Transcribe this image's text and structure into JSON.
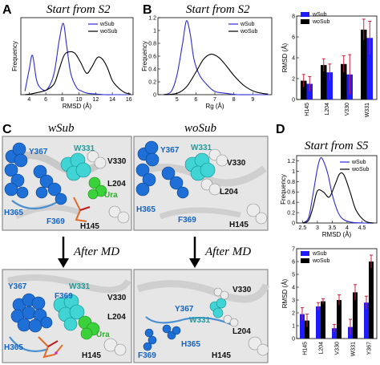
{
  "colors": {
    "wSub": "#2b2bd4",
    "woSub": "#000000",
    "err": "#d01c3c",
    "bar_wSub": "#1c1cff",
    "bar_woSub": "#000000"
  },
  "panels": {
    "A": {
      "letter": "A",
      "title": "Start from S2"
    },
    "B": {
      "letter": "B",
      "title": "Start from S2"
    },
    "C": {
      "letter": "C",
      "title_left": "wSub",
      "title_right": "woSub",
      "after_left": "After MD",
      "after_right": "After MD"
    },
    "D": {
      "letter": "D",
      "title": "Start from S5"
    }
  },
  "structure_labels": {
    "tl": [
      "Y367",
      "W331",
      "V330",
      "L204",
      "Ura",
      "H365",
      "F369",
      "H145"
    ],
    "tr": [
      "Y367",
      "W331",
      "V330",
      "L204",
      "H365",
      "F369",
      "H145"
    ],
    "bl": [
      "Y367",
      "W331",
      "F369",
      "V330",
      "L204",
      "Ura",
      "H365",
      "H145"
    ],
    "br": [
      "V330",
      "Y367",
      "W331",
      "L204",
      "F369",
      "H365",
      "H145"
    ]
  },
  "chart_data": [
    {
      "id": "A",
      "type": "line",
      "xlabel": "RMSD (Å)",
      "ylabel": "Frequency",
      "xlim": [
        3,
        16.5
      ],
      "xticks": [
        4,
        6,
        8,
        10,
        12,
        14,
        16
      ],
      "legend": [
        "wSub",
        "woSub"
      ],
      "legend_position": "top-right",
      "series": [
        {
          "name": "wSub",
          "x": [
            3.5,
            4.0,
            4.4,
            4.9,
            5.5,
            6.2,
            7.0,
            7.6,
            8.1,
            8.5,
            9.0,
            9.7,
            10.3,
            11,
            12,
            13,
            14,
            15,
            16
          ],
          "y": [
            0.05,
            0.35,
            0.55,
            0.2,
            0.08,
            0.08,
            0.3,
            0.75,
            1.0,
            0.7,
            0.3,
            0.1,
            0.05,
            0.02,
            0.01,
            0,
            0,
            0,
            0
          ]
        },
        {
          "name": "woSub",
          "x": [
            3.5,
            4.2,
            5,
            6,
            7,
            7.6,
            8.2,
            8.8,
            9.5,
            10.2,
            10.9,
            11.5,
            12.2,
            12.8,
            13.4,
            14,
            14.7,
            15.5,
            16.2
          ],
          "y": [
            0,
            0.01,
            0.03,
            0.06,
            0.15,
            0.35,
            0.55,
            0.6,
            0.58,
            0.45,
            0.3,
            0.38,
            0.52,
            0.5,
            0.38,
            0.2,
            0.1,
            0.03,
            0.01
          ]
        }
      ]
    },
    {
      "id": "B",
      "type": "line",
      "xlabel": "Rg (Å)",
      "ylabel": "Frequency",
      "xlim": [
        4,
        10
      ],
      "ylim": [
        0,
        1.2
      ],
      "xticks": [
        5,
        6,
        7,
        8,
        9
      ],
      "yticks": [
        0,
        0.2,
        0.4,
        0.6,
        0.8,
        1.0,
        1.2
      ],
      "legend": [
        "wSub",
        "woSub"
      ],
      "legend_position": "top-right",
      "series": [
        {
          "name": "wSub",
          "x": [
            4.3,
            4.7,
            5.0,
            5.3,
            5.5,
            5.7,
            5.9,
            6.2,
            6.6,
            7.0,
            7.6,
            8.2,
            9,
            9.8
          ],
          "y": [
            0,
            0.05,
            0.3,
            0.8,
            1.15,
            0.95,
            0.55,
            0.3,
            0.15,
            0.05,
            0.02,
            0,
            0,
            0
          ]
        },
        {
          "name": "woSub",
          "x": [
            4.3,
            5,
            5.5,
            6,
            6.4,
            6.8,
            7.2,
            7.6,
            8,
            8.5,
            9,
            9.5,
            9.8
          ],
          "y": [
            0,
            0.02,
            0.12,
            0.35,
            0.55,
            0.63,
            0.58,
            0.45,
            0.3,
            0.15,
            0.06,
            0.02,
            0.01
          ]
        }
      ]
    },
    {
      "id": "B-right",
      "type": "bar",
      "ylabel": "RMSD (Å)",
      "ylim": [
        0,
        8
      ],
      "yticks": [
        0,
        2,
        4,
        6,
        8
      ],
      "categories": [
        "H145",
        "L204",
        "V330",
        "W331"
      ],
      "legend": [
        "wSub",
        "woSub"
      ],
      "legend_position": "top-left",
      "series": [
        {
          "name": "wSub",
          "values": [
            1.5,
            2.6,
            2.4,
            5.9
          ],
          "errors": [
            0.7,
            0.8,
            1.9,
            1.6
          ]
        },
        {
          "name": "woSub",
          "values": [
            1.8,
            3.3,
            3.4,
            6.7
          ],
          "errors": [
            0.6,
            0.6,
            0.8,
            1.0
          ]
        }
      ]
    },
    {
      "id": "D-top",
      "type": "line",
      "xlabel": "RMSD (Å)",
      "ylabel": "Frequency",
      "xlim": [
        2.3,
        5.0
      ],
      "ylim": [
        0,
        1.3
      ],
      "xticks": [
        2.5,
        3.0,
        3.5,
        4.0,
        4.5
      ],
      "yticks": [
        0,
        0.2,
        0.4,
        0.6,
        0.8,
        1.0,
        1.2
      ],
      "legend": [
        "wSub",
        "woSub"
      ],
      "legend_position": "top-right",
      "series": [
        {
          "name": "wSub",
          "x": [
            2.5,
            2.7,
            2.85,
            3.0,
            3.1,
            3.2,
            3.35,
            3.5,
            3.7,
            3.9,
            4.2,
            4.6,
            4.9
          ],
          "y": [
            0,
            0.1,
            0.55,
            1.05,
            1.25,
            1.2,
            0.95,
            0.55,
            0.2,
            0.06,
            0.01,
            0,
            0
          ]
        },
        {
          "name": "woSub",
          "x": [
            2.5,
            2.7,
            2.85,
            3.0,
            3.2,
            3.4,
            3.6,
            3.75,
            3.9,
            4.1,
            4.3,
            4.6,
            4.9
          ],
          "y": [
            0,
            0.05,
            0.3,
            0.62,
            0.6,
            0.5,
            0.75,
            0.95,
            0.92,
            0.6,
            0.25,
            0.04,
            0
          ]
        }
      ]
    },
    {
      "id": "D-bottom",
      "type": "bar",
      "ylabel": "RMSD (Å)",
      "ylim": [
        0,
        7
      ],
      "yticks": [
        0,
        1,
        2,
        3,
        4,
        5,
        6,
        7
      ],
      "categories": [
        "H145",
        "L204",
        "V330",
        "W331",
        "Y367"
      ],
      "legend": [
        "wSub",
        "woSub"
      ],
      "legend_position": "top-left",
      "series": [
        {
          "name": "wSub",
          "values": [
            1.9,
            2.5,
            0.8,
            0.9,
            2.8
          ],
          "errors": [
            0.5,
            0.3,
            0.3,
            0.6,
            0.5
          ]
        },
        {
          "name": "woSub",
          "values": [
            1.4,
            2.9,
            3.0,
            3.6,
            6.0
          ],
          "errors": [
            0.5,
            0.2,
            0.4,
            0.6,
            0.5
          ]
        }
      ]
    }
  ]
}
